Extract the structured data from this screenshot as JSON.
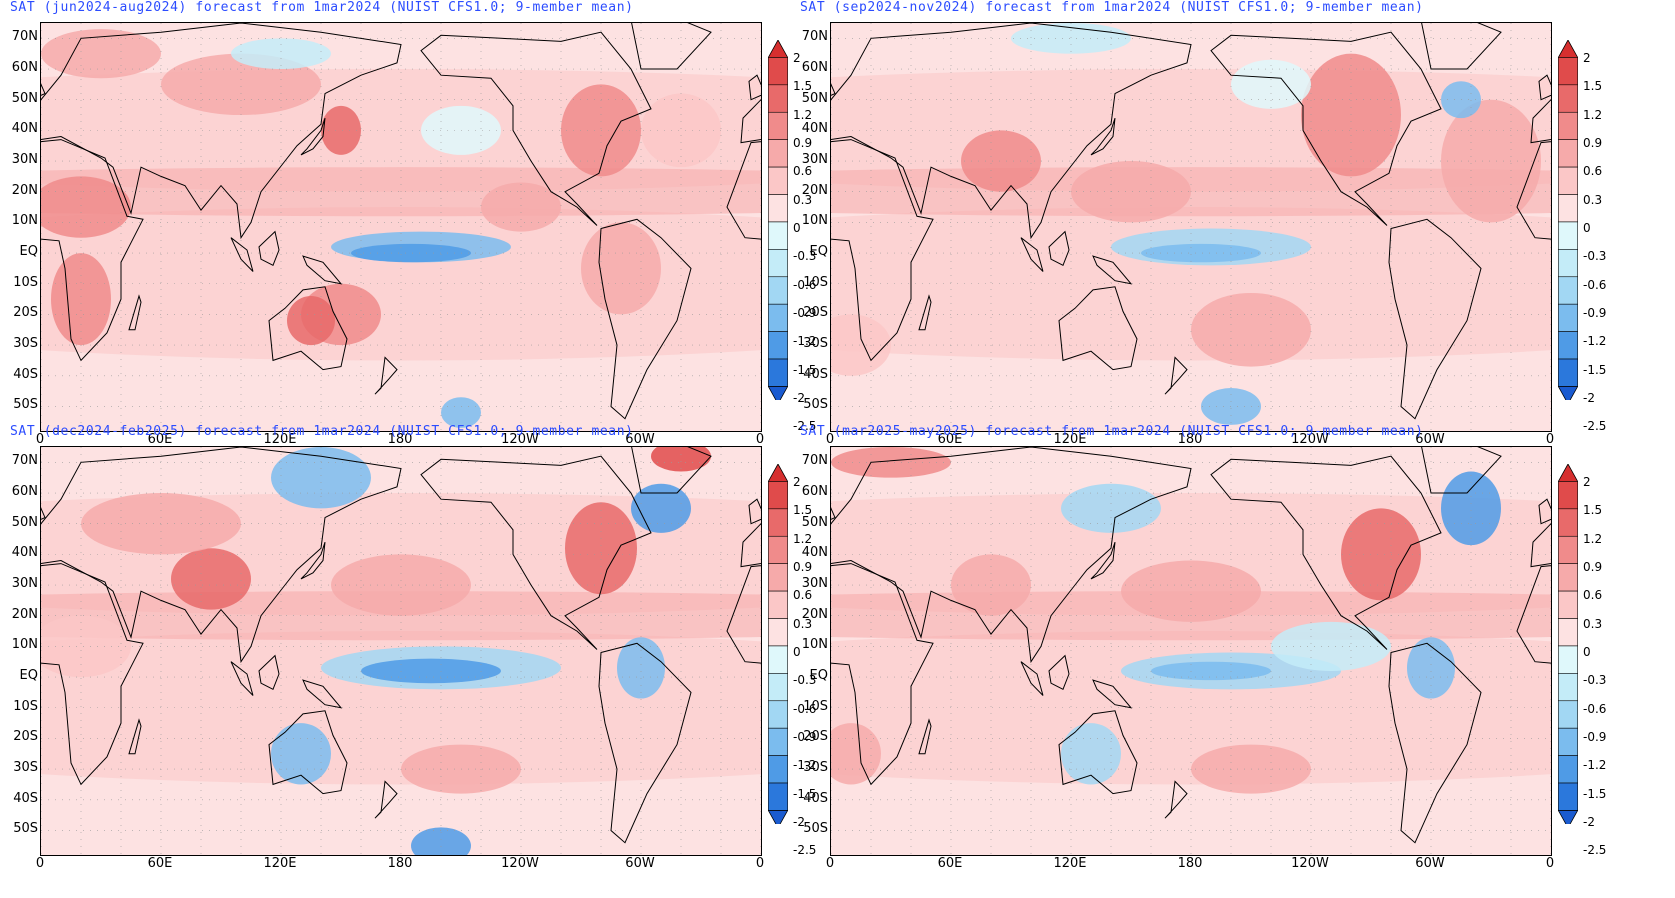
{
  "panels": [
    {
      "title": "SAT (jun2024-aug2024) forecast from 1mar2024 (NUIST CFS1.0; 9-member mean)",
      "pattern": "warm-summer"
    },
    {
      "title": "SAT (sep2024-nov2024) forecast from 1mar2024 (NUIST CFS1.0; 9-member mean)",
      "pattern": "warm-autumn"
    },
    {
      "title": "SAT (dec2024-feb2025) forecast from 1mar2024 (NUIST CFS1.0; 9-member mean)",
      "pattern": "lanina-winter"
    },
    {
      "title": "SAT (mar2025-may2025) forecast from 1mar2024 (NUIST CFS1.0; 9-member mean)",
      "pattern": "lanina-spring"
    }
  ],
  "lat_labels": [
    "70N",
    "60N",
    "50N",
    "40N",
    "30N",
    "20N",
    "10N",
    "EQ",
    "10S",
    "20S",
    "30S",
    "40S",
    "50S"
  ],
  "lon_labels": [
    "0",
    "60E",
    "120E",
    "180",
    "120W",
    "60W",
    "0"
  ],
  "colorbar": {
    "labels": [
      "2",
      "1.5",
      "1.2",
      "0.9",
      "0.6",
      "0.3",
      "0",
      "-0.3",
      "-0.6",
      "-0.9",
      "-1.2",
      "-1.5",
      "-2",
      "-2.5"
    ],
    "colors": [
      "#d62f2f",
      "#e04b4b",
      "#e86a6a",
      "#f08b8b",
      "#f6aaaa",
      "#fbc7c7",
      "#fde2e2",
      "#dff8fb",
      "#c4ecf8",
      "#a2d7f3",
      "#7bbcee",
      "#4f9be6",
      "#2b78dc",
      "#1a5bd0"
    ]
  },
  "colors": {
    "title": "#2b4cff"
  }
}
